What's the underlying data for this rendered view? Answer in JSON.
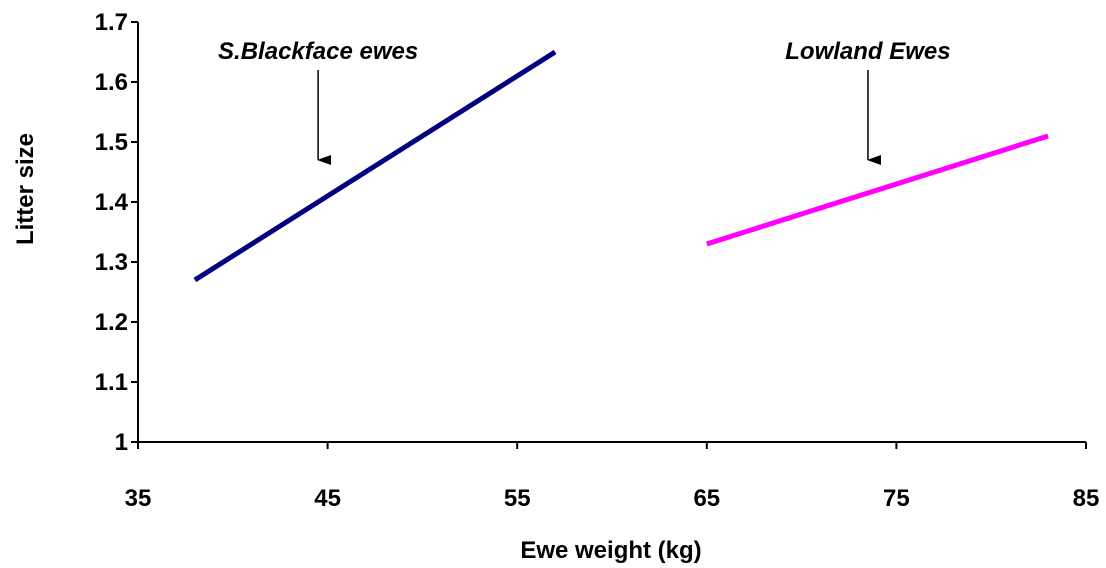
{
  "chart_data": {
    "type": "line",
    "title": "",
    "xlabel": "Ewe weight (kg)",
    "ylabel": "Litter size",
    "xlim": [
      35,
      85
    ],
    "ylim": [
      1,
      1.7
    ],
    "xticks": [
      35,
      45,
      55,
      65,
      75,
      85
    ],
    "yticks": [
      1,
      1.1,
      1.2,
      1.3,
      1.4,
      1.5,
      1.6,
      1.7
    ],
    "xtick_labels": [
      "35",
      "45",
      "55",
      "65",
      "75",
      "85"
    ],
    "ytick_labels": [
      "1",
      "1.1",
      "1.2",
      "1.3",
      "1.4",
      "1.5",
      "1.6",
      "1.7"
    ],
    "grid": false,
    "legend": "none",
    "series": [
      {
        "x": [
          38,
          57
        ],
        "y": [
          1.27,
          1.65
        ],
        "color": "#000080"
      },
      {
        "x": [
          65,
          83
        ],
        "y": [
          1.33,
          1.51
        ],
        "color": "#ff00ff"
      }
    ],
    "annotations": [
      {
        "text": "S.Blackface ewes",
        "arrow_x": 44.5,
        "arrow_from_y": 1.62,
        "arrow_to_y": 1.47
      },
      {
        "text": "Lowland Ewes",
        "arrow_x": 73.5,
        "arrow_from_y": 1.62,
        "arrow_to_y": 1.47
      }
    ]
  }
}
